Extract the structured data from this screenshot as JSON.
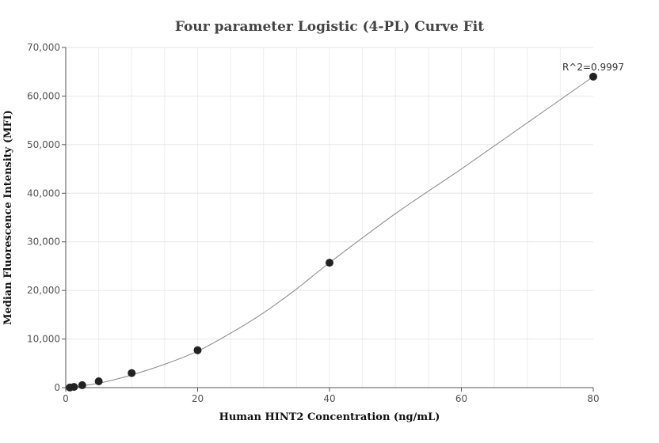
{
  "chart_data": {
    "type": "scatter",
    "title": "Four parameter Logistic (4-PL) Curve Fit",
    "xlabel": "Human HINT2 Concentration (ng/mL)",
    "ylabel": "Median Fluorescence Intensity (MFI)",
    "xlim": [
      0,
      80
    ],
    "ylim": [
      0,
      70000
    ],
    "x_ticks": [
      0,
      20,
      40,
      60,
      80
    ],
    "y_ticks": [
      0,
      10000,
      20000,
      30000,
      40000,
      50000,
      60000,
      70000
    ],
    "x_tick_labels": [
      "0",
      "20",
      "40",
      "60",
      "80"
    ],
    "y_tick_labels": [
      "0",
      "10,000",
      "20,000",
      "30,000",
      "40,000",
      "50,000",
      "60,000",
      "70,000"
    ],
    "grid": true,
    "series": [
      {
        "points": [
          {
            "x": 0.625,
            "y": 20
          },
          {
            "x": 1.25,
            "y": 150
          },
          {
            "x": 2.5,
            "y": 500
          },
          {
            "x": 5,
            "y": 1300
          },
          {
            "x": 10,
            "y": 3000
          },
          {
            "x": 20,
            "y": 7700
          },
          {
            "x": 40,
            "y": 25700
          },
          {
            "x": 80,
            "y": 64000
          }
        ],
        "color": "#222222"
      }
    ],
    "fit_curve": {
      "color": "#888888",
      "points": [
        [
          0,
          0
        ],
        [
          5,
          900
        ],
        [
          10,
          2600
        ],
        [
          15,
          4800
        ],
        [
          20,
          7500
        ],
        [
          25,
          11200
        ],
        [
          30,
          15400
        ],
        [
          35,
          20300
        ],
        [
          40,
          25700
        ],
        [
          50,
          35800
        ],
        [
          60,
          45000
        ],
        [
          70,
          54500
        ],
        [
          80,
          64000
        ]
      ]
    },
    "annotations": [
      {
        "text": "R^2=0.9997",
        "x": 80,
        "y": 64000
      }
    ]
  }
}
